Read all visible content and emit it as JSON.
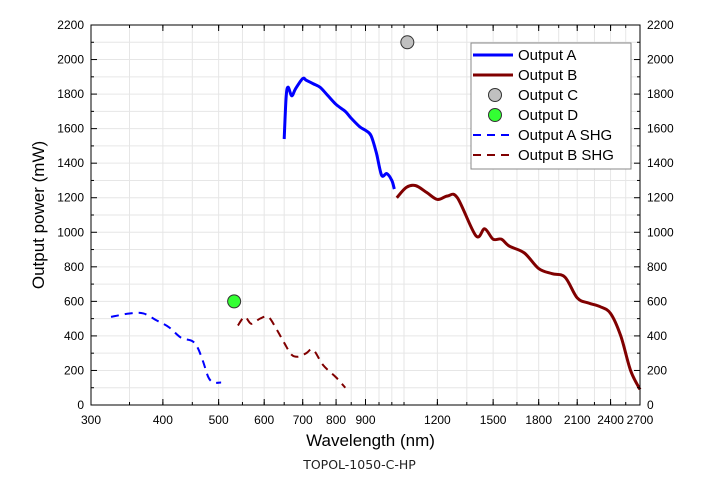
{
  "chart_data": {
    "type": "line",
    "title": "",
    "xlabel": "Wavelength (nm)",
    "ylabel": "Output power (mW)",
    "xscale": "log",
    "xlim": [
      300,
      2700
    ],
    "ylim": [
      0,
      2200
    ],
    "grid": true,
    "xticks": [
      300,
      400,
      500,
      600,
      700,
      800,
      900,
      1200,
      1500,
      1800,
      2100,
      2400,
      2700
    ],
    "yticks": [
      0,
      200,
      400,
      600,
      800,
      1000,
      1200,
      1400,
      1600,
      1800,
      2000,
      2200
    ],
    "right_axis_ticks": [
      0,
      200,
      400,
      600,
      800,
      1000,
      1200,
      1400,
      1600,
      1800,
      2000,
      2200
    ],
    "legend_position": "top-right",
    "series": [
      {
        "name": "Output A",
        "style": "solid",
        "color": "#0000ff",
        "x": [
          650,
          655,
          660,
          670,
          680,
          700,
          710,
          730,
          750,
          770,
          800,
          830,
          850,
          880,
          900,
          920,
          940,
          960,
          980,
          1000,
          1010
        ],
        "y": [
          1540,
          1780,
          1840,
          1790,
          1830,
          1890,
          1880,
          1860,
          1840,
          1800,
          1740,
          1700,
          1660,
          1610,
          1590,
          1560,
          1460,
          1330,
          1340,
          1300,
          1250
        ]
      },
      {
        "name": "Output B",
        "style": "solid",
        "color": "#800000",
        "x": [
          1020,
          1060,
          1100,
          1150,
          1200,
          1250,
          1300,
          1400,
          1450,
          1500,
          1550,
          1600,
          1700,
          1800,
          1900,
          2000,
          2100,
          2200,
          2300,
          2400,
          2500,
          2600,
          2700
        ],
        "y": [
          1200,
          1260,
          1270,
          1230,
          1190,
          1210,
          1200,
          980,
          1020,
          960,
          960,
          920,
          880,
          790,
          760,
          740,
          620,
          590,
          570,
          530,
          400,
          200,
          90
        ]
      },
      {
        "name": "Output C",
        "style": "marker",
        "color": "#c0c0c0",
        "x": [
          1064
        ],
        "y": [
          2100
        ]
      },
      {
        "name": "Output D",
        "style": "marker",
        "color": "#33ff33",
        "x": [
          532
        ],
        "y": [
          600
        ]
      },
      {
        "name": "Output A SHG",
        "style": "dashed",
        "color": "#0000ff",
        "x": [
          325,
          350,
          370,
          390,
          410,
          430,
          450,
          460,
          470,
          480,
          490,
          505
        ],
        "y": [
          510,
          530,
          530,
          490,
          450,
          390,
          370,
          330,
          250,
          160,
          130,
          130
        ]
      },
      {
        "name": "Output B SHG",
        "style": "dashed",
        "color": "#800000",
        "x": [
          540,
          555,
          570,
          590,
          610,
          630,
          650,
          670,
          690,
          710,
          730,
          760,
          800,
          830
        ],
        "y": [
          460,
          510,
          470,
          500,
          510,
          440,
          360,
          290,
          280,
          300,
          320,
          230,
          160,
          100
        ]
      }
    ]
  },
  "caption": "TOPOL-1050-C-HP"
}
